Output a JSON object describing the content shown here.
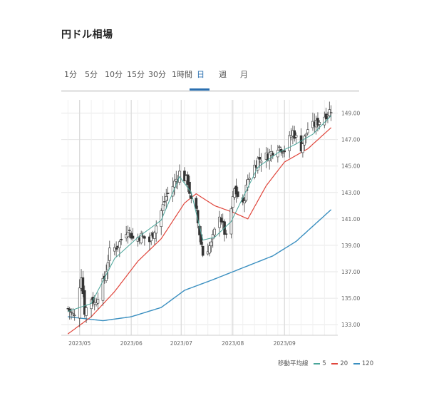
{
  "page": {
    "title": "円ドル相場"
  },
  "tabs": [
    {
      "label": "1分",
      "active": false
    },
    {
      "label": "5分",
      "active": false
    },
    {
      "label": "10分",
      "active": false
    },
    {
      "label": "15分",
      "active": false
    },
    {
      "label": "30分",
      "active": false
    },
    {
      "label": "1時間",
      "active": false
    },
    {
      "label": "日",
      "active": true
    },
    {
      "label": "週",
      "active": false
    },
    {
      "label": "月",
      "active": false
    }
  ],
  "legend": {
    "label": "移動平均線",
    "items": [
      {
        "name": "5",
        "color": "#4aa59a"
      },
      {
        "name": "20",
        "color": "#e0463c"
      },
      {
        "name": "120",
        "color": "#3a8fc0"
      }
    ]
  },
  "chart_data": {
    "type": "candlestick",
    "x_tick_labels": [
      "2023/05",
      "2023/06",
      "2023/07",
      "2023/08",
      "2023/09"
    ],
    "y_ticks": [
      "133.00",
      "135.00",
      "137.00",
      "139.00",
      "141.00",
      "143.00",
      "145.00",
      "147.00",
      "149.00"
    ],
    "ylim": [
      132.2,
      150.0
    ],
    "grid": true,
    "y_axis_position": "right",
    "legend_position": "bottom-right",
    "colors": {
      "up": "#555555",
      "down": "#333333",
      "grid": "#e6e6e6"
    },
    "close_anchors": [
      [
        "2023-04-24",
        134.2
      ],
      [
        "2023-04-28",
        133.6
      ],
      [
        "2023-05-02",
        136.8
      ],
      [
        "2023-05-04",
        134.0
      ],
      [
        "2023-05-08",
        135.0
      ],
      [
        "2023-05-10",
        134.6
      ],
      [
        "2023-05-16",
        136.5
      ],
      [
        "2023-05-19",
        138.5
      ],
      [
        "2023-05-24",
        139.0
      ],
      [
        "2023-05-30",
        140.3
      ],
      [
        "2023-06-02",
        139.5
      ],
      [
        "2023-06-07",
        139.7
      ],
      [
        "2023-06-12",
        139.3
      ],
      [
        "2023-06-16",
        140.5
      ],
      [
        "2023-06-22",
        142.7
      ],
      [
        "2023-06-26",
        143.5
      ],
      [
        "2023-06-30",
        144.5
      ],
      [
        "2023-07-05",
        143.8
      ],
      [
        "2023-07-07",
        142.3
      ],
      [
        "2023-07-10",
        141.5
      ],
      [
        "2023-07-14",
        138.3
      ],
      [
        "2023-07-19",
        139.1
      ],
      [
        "2023-07-24",
        141.4
      ],
      [
        "2023-07-28",
        139.5
      ],
      [
        "2023-08-02",
        143.2
      ],
      [
        "2023-08-07",
        142.0
      ],
      [
        "2023-08-10",
        144.0
      ],
      [
        "2023-08-16",
        145.5
      ],
      [
        "2023-08-22",
        145.8
      ],
      [
        "2023-08-28",
        146.5
      ],
      [
        "2023-09-01",
        146.2
      ],
      [
        "2023-09-06",
        147.6
      ],
      [
        "2023-09-11",
        146.4
      ],
      [
        "2023-09-15",
        147.8
      ],
      [
        "2023-09-21",
        148.3
      ],
      [
        "2023-09-26",
        148.9
      ],
      [
        "2023-09-29",
        149.3
      ]
    ],
    "ma5_anchors": [
      [
        "2023-04-24",
        134.0
      ],
      [
        "2023-05-08",
        134.6
      ],
      [
        "2023-05-22",
        138.0
      ],
      [
        "2023-06-05",
        139.6
      ],
      [
        "2023-06-19",
        140.9
      ],
      [
        "2023-06-30",
        144.2
      ],
      [
        "2023-07-07",
        143.0
      ],
      [
        "2023-07-14",
        139.4
      ],
      [
        "2023-07-21",
        139.6
      ],
      [
        "2023-07-31",
        140.8
      ],
      [
        "2023-08-07",
        142.6
      ],
      [
        "2023-08-16",
        144.9
      ],
      [
        "2023-08-28",
        146.0
      ],
      [
        "2023-09-07",
        146.6
      ],
      [
        "2023-09-18",
        147.4
      ],
      [
        "2023-09-29",
        148.8
      ]
    ],
    "ma20_anchors": [
      [
        "2023-04-24",
        132.3
      ],
      [
        "2023-05-08",
        133.6
      ],
      [
        "2023-05-22",
        135.5
      ],
      [
        "2023-06-05",
        137.8
      ],
      [
        "2023-06-19",
        139.5
      ],
      [
        "2023-07-03",
        142.2
      ],
      [
        "2023-07-10",
        142.9
      ],
      [
        "2023-07-21",
        142.0
      ],
      [
        "2023-08-01",
        141.5
      ],
      [
        "2023-08-10",
        141.0
      ],
      [
        "2023-08-21",
        143.5
      ],
      [
        "2023-09-01",
        145.3
      ],
      [
        "2023-09-15",
        146.3
      ],
      [
        "2023-09-29",
        147.9
      ]
    ],
    "ma120_anchors": [
      [
        "2023-04-24",
        133.6
      ],
      [
        "2023-05-15",
        133.3
      ],
      [
        "2023-06-01",
        133.6
      ],
      [
        "2023-06-19",
        134.3
      ],
      [
        "2023-07-03",
        135.6
      ],
      [
        "2023-07-20",
        136.4
      ],
      [
        "2023-08-07",
        137.3
      ],
      [
        "2023-08-25",
        138.2
      ],
      [
        "2023-09-08",
        139.3
      ],
      [
        "2023-09-29",
        141.7
      ]
    ]
  }
}
